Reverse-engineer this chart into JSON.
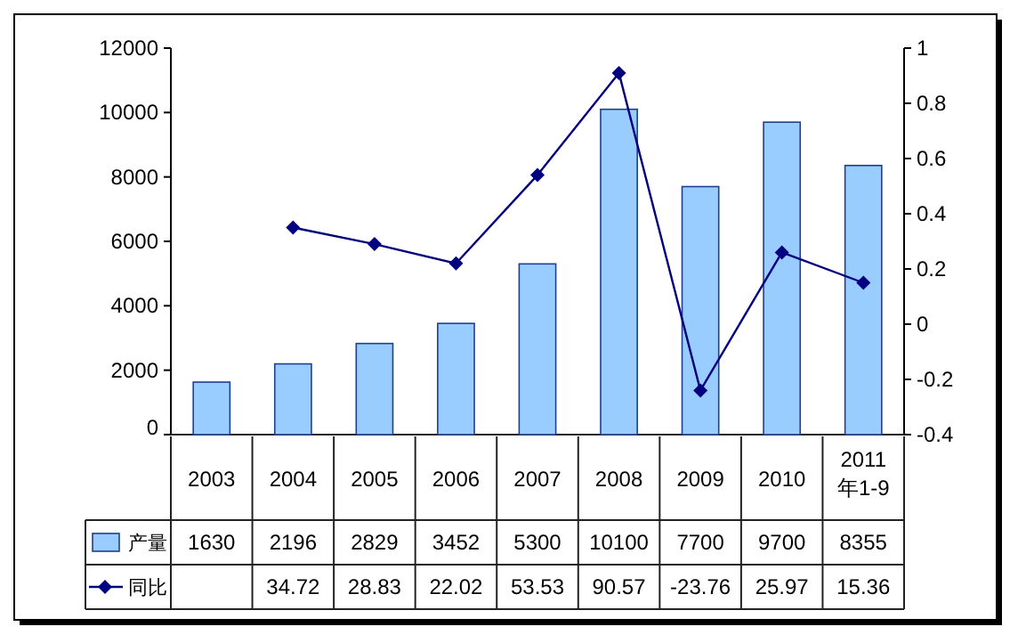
{
  "chart_data": {
    "type": "bar",
    "categories": [
      "2003",
      "2004",
      "2005",
      "2006",
      "2007",
      "2008",
      "2009",
      "2010",
      "2011年1-9"
    ],
    "series": [
      {
        "name": "产量",
        "color": "#99ccff",
        "values": [
          1630,
          2196,
          2829,
          3452,
          5300,
          10100,
          7700,
          9700,
          8355
        ],
        "value_labels": [
          "1630",
          "2196",
          "2829",
          "3452",
          "5300",
          "10100",
          "7700",
          "9700",
          "8355"
        ]
      },
      {
        "name": "同比",
        "type": "line",
        "axis": "y2",
        "color": "#000080",
        "marker": "diamond",
        "values": [
          null,
          0.35,
          0.29,
          0.22,
          0.54,
          0.91,
          -0.24,
          0.26,
          0.15
        ]
      }
    ],
    "annotations": [
      "34.72",
      "28.83",
      "22.02",
      "53.53",
      "90.57",
      "-23.76",
      "25.97",
      "15.36"
    ],
    "ylim": [
      0,
      12000
    ],
    "yticks": [
      0,
      2000,
      4000,
      6000,
      8000,
      10000,
      12000
    ],
    "y2lim": [
      -0.4,
      1
    ],
    "y2ticks": [
      -0.4,
      -0.2,
      0,
      0.2,
      0.4,
      0.6,
      0.8,
      1
    ],
    "grid": false,
    "legend": "bottom left"
  }
}
